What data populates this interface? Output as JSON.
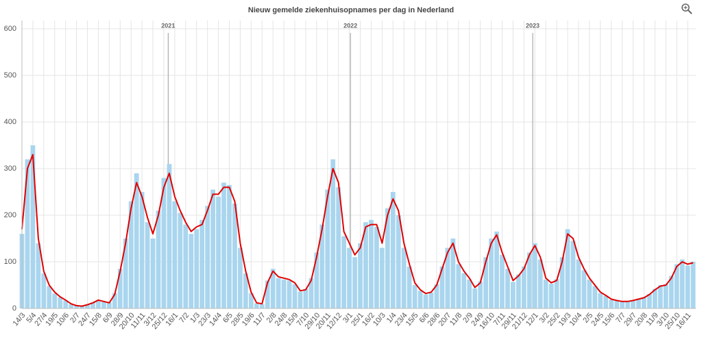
{
  "chart_data": {
    "type": "bar-line",
    "title": "Nieuw gemelde ziekenhuisopnames per dag in Nederland",
    "categories": [
      "14/3",
      null,
      "5/4",
      null,
      "27/4",
      null,
      "19/5",
      null,
      "10/6",
      null,
      "2/7",
      null,
      "24/7",
      null,
      "15/8",
      null,
      "6/9",
      null,
      "28/9",
      null,
      "20/10",
      null,
      "11/11",
      null,
      "3/12",
      null,
      "25/12",
      null,
      "16/1",
      null,
      "7/2",
      null,
      "1/3",
      null,
      "23/3",
      null,
      "14/4",
      null,
      "6/5",
      null,
      "28/5",
      null,
      "19/6",
      null,
      "11/7",
      null,
      "2/8",
      null,
      "24/8",
      null,
      "15/9",
      null,
      "7/10",
      null,
      "29/10",
      null,
      "20/11",
      null,
      "12/12",
      null,
      "3/1",
      null,
      "25/1",
      null,
      "16/2",
      null,
      "10/3",
      null,
      "1/4",
      null,
      "23/4",
      null,
      "15/5",
      null,
      "6/6",
      null,
      "28/6",
      null,
      "20/7",
      null,
      "11/8",
      null,
      "2/9",
      null,
      "24/9",
      null,
      "16/10",
      null,
      "7/11",
      null,
      "29/11",
      null,
      "21/12",
      null,
      "12/1",
      null,
      "3/2",
      null,
      "25/2",
      null,
      "19/3",
      null,
      "10/4",
      null,
      "2/5",
      null,
      "24/5",
      null,
      "15/6",
      null,
      "7/7",
      null,
      "29/7",
      null,
      "20/8",
      null,
      "11/9",
      null,
      "3/10",
      null,
      "25/10",
      null,
      "16/11",
      null
    ],
    "series": [
      {
        "kind": "bar",
        "color": "#a9d5ee",
        "values": [
          160,
          320,
          350,
          140,
          75,
          48,
          32,
          24,
          17,
          9,
          6,
          5,
          9,
          13,
          17,
          14,
          13,
          33,
          85,
          150,
          230,
          290,
          250,
          185,
          150,
          210,
          280,
          310,
          230,
          205,
          180,
          160,
          170,
          190,
          220,
          255,
          240,
          270,
          265,
          225,
          130,
          75,
          33,
          11,
          9,
          60,
          85,
          65,
          62,
          60,
          52,
          36,
          42,
          65,
          120,
          180,
          255,
          320,
          260,
          155,
          130,
          110,
          140,
          185,
          190,
          175,
          130,
          215,
          250,
          200,
          130,
          90,
          50,
          38,
          30,
          34,
          52,
          90,
          130,
          150,
          95,
          76,
          62,
          43,
          58,
          110,
          150,
          165,
          115,
          85,
          57,
          73,
          90,
          120,
          140,
          105,
          62,
          53,
          63,
          110,
          170,
          145,
          105,
          82,
          62,
          48,
          33,
          27,
          19,
          16,
          14,
          15,
          16,
          21,
          24,
          31,
          42,
          50,
          52,
          70,
          95,
          105,
          92,
          100
        ]
      },
      {
        "kind": "line",
        "color": "#e00000",
        "values": [
          170,
          300,
          330,
          150,
          80,
          50,
          35,
          25,
          18,
          10,
          6,
          5,
          8,
          12,
          18,
          15,
          12,
          30,
          80,
          140,
          215,
          270,
          240,
          195,
          160,
          200,
          260,
          290,
          240,
          210,
          185,
          165,
          175,
          180,
          210,
          245,
          245,
          260,
          260,
          230,
          140,
          80,
          35,
          12,
          10,
          55,
          80,
          68,
          65,
          62,
          55,
          38,
          40,
          60,
          110,
          170,
          240,
          300,
          270,
          165,
          140,
          115,
          130,
          175,
          180,
          180,
          140,
          200,
          235,
          210,
          140,
          95,
          55,
          40,
          32,
          35,
          50,
          85,
          120,
          140,
          100,
          80,
          65,
          45,
          55,
          100,
          140,
          158,
          120,
          90,
          60,
          70,
          85,
          115,
          135,
          110,
          65,
          55,
          60,
          100,
          160,
          150,
          110,
          85,
          65,
          50,
          35,
          28,
          20,
          17,
          15,
          15,
          17,
          20,
          23,
          30,
          40,
          48,
          50,
          65,
          90,
          100,
          95,
          98
        ]
      }
    ],
    "annotations": [
      "2021",
      "2022",
      "2023"
    ],
    "ylim": [
      0,
      600
    ],
    "yticks": [
      0,
      100,
      200,
      300,
      400,
      500,
      600
    ],
    "grid": true
  }
}
